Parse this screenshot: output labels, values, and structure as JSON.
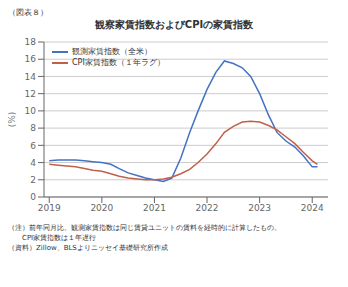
{
  "chart_data": {
    "type": "line",
    "title": "観察家賃指数およびCPIの家賃指数",
    "subtitle": "（図表８）",
    "y_label": "(%)",
    "annotations": [
      "（注）前年同月比。観測家賃指数は同じ賃貸ユニットの賃料を経時的に計算したもの。",
      "　　CPI家賃指数は１年遅行",
      "（資料）Zillow、BLSよりニッセイ基礎研究所作成"
    ],
    "x": [
      2019.0,
      2019.17,
      2019.33,
      2019.5,
      2019.67,
      2019.83,
      2020.0,
      2020.17,
      2020.33,
      2020.5,
      2020.67,
      2020.83,
      2021.0,
      2021.17,
      2021.33,
      2021.5,
      2021.67,
      2021.83,
      2022.0,
      2022.17,
      2022.33,
      2022.5,
      2022.67,
      2022.83,
      2023.0,
      2023.17,
      2023.33,
      2023.5,
      2023.67,
      2023.83,
      2024.0,
      2024.1
    ],
    "series": [
      {
        "name": "観測家賃指数（全米）",
        "color": "#4472c4",
        "values": [
          4.2,
          4.3,
          4.3,
          4.3,
          4.2,
          4.1,
          4.0,
          3.8,
          3.3,
          2.8,
          2.5,
          2.2,
          2.0,
          1.8,
          2.2,
          4.5,
          7.5,
          10.0,
          12.5,
          14.5,
          15.8,
          15.5,
          15.0,
          14.0,
          12.0,
          9.5,
          7.5,
          6.5,
          5.8,
          4.8,
          3.5,
          3.5
        ]
      },
      {
        "name": "CPI家賃指数（１年ラグ）",
        "color": "#c0604a",
        "values": [
          3.8,
          3.7,
          3.6,
          3.5,
          3.3,
          3.1,
          3.0,
          2.7,
          2.4,
          2.2,
          2.1,
          2.0,
          2.0,
          2.1,
          2.3,
          2.7,
          3.2,
          4.0,
          5.0,
          6.2,
          7.5,
          8.2,
          8.7,
          8.8,
          8.7,
          8.3,
          7.8,
          7.0,
          6.2,
          5.2,
          4.2,
          3.8
        ]
      }
    ],
    "xlim": [
      2018.9,
      2024.3
    ],
    "xticks": [
      2019,
      2020,
      2021,
      2022,
      2023,
      2024
    ],
    "ylim": [
      0,
      18
    ],
    "yticks": [
      0,
      2,
      4,
      6,
      8,
      10,
      12,
      14,
      16,
      18
    ],
    "grid": true,
    "legend": "upper left"
  }
}
